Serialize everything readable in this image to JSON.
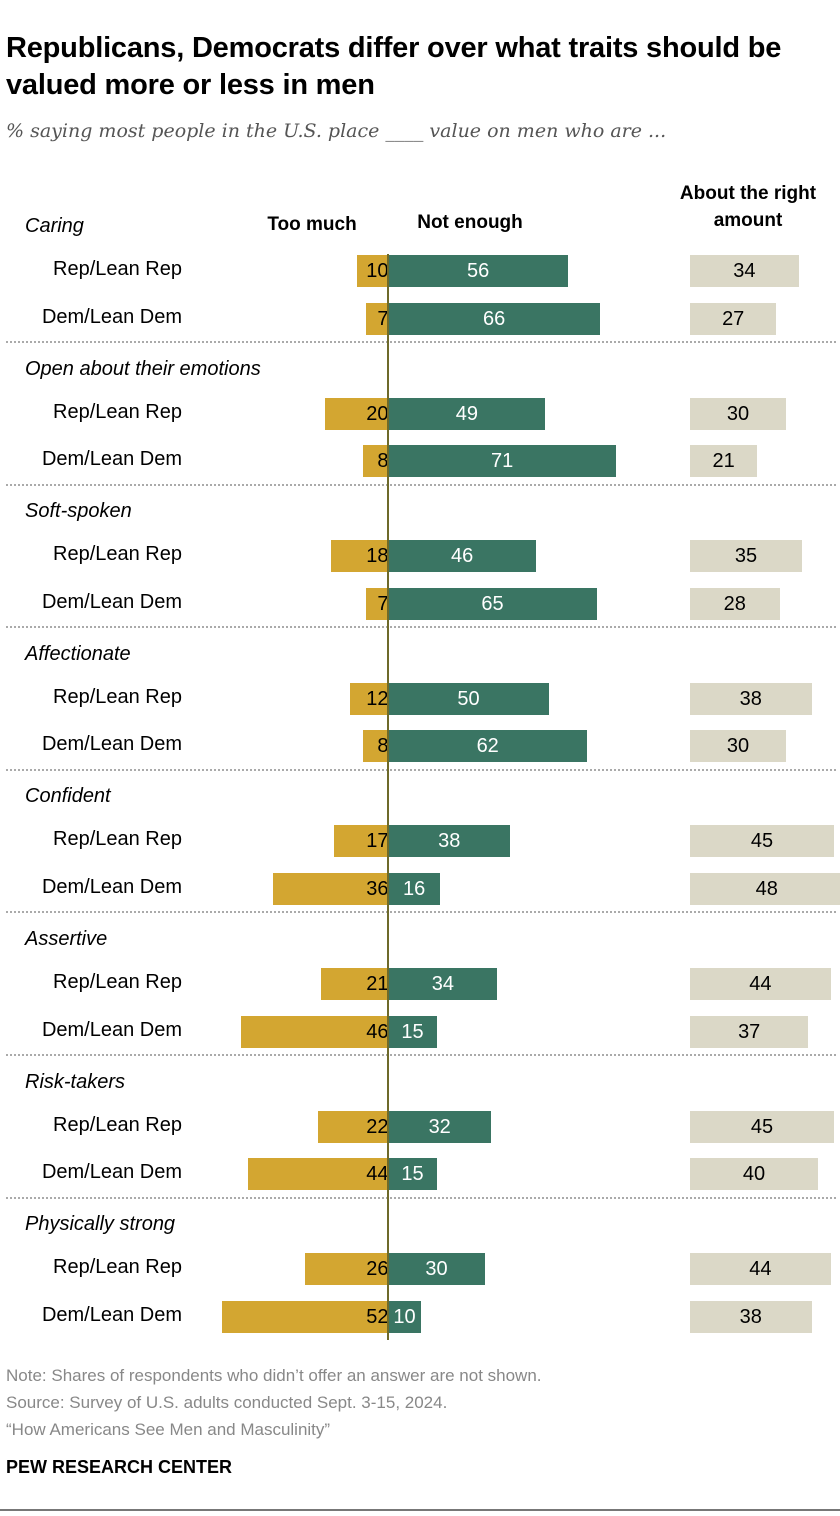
{
  "title": "Republicans, Democrats differ over what traits should be valued more or less in men",
  "subtitle": "% saying most people in the U.S. place ____ value on men who are ...",
  "chart_data": {
    "type": "bar",
    "columns": [
      "Too much",
      "Not enough",
      "About the right amount"
    ],
    "groups": [
      "Rep/Lean Rep",
      "Dem/Lean Dem"
    ],
    "colors": {
      "too_much": "#D3A631",
      "not_enough": "#3A7563",
      "right_amount": "#DBD8C7"
    },
    "categories": [
      {
        "name": "Caring",
        "rows": [
          [
            10,
            56,
            34
          ],
          [
            7,
            66,
            27
          ]
        ]
      },
      {
        "name": "Open about their emotions",
        "rows": [
          [
            20,
            49,
            30
          ],
          [
            8,
            71,
            21
          ]
        ]
      },
      {
        "name": "Soft-spoken",
        "rows": [
          [
            18,
            46,
            35
          ],
          [
            7,
            65,
            28
          ]
        ]
      },
      {
        "name": "Affectionate",
        "rows": [
          [
            12,
            50,
            38
          ],
          [
            8,
            62,
            30
          ]
        ]
      },
      {
        "name": "Confident",
        "rows": [
          [
            17,
            38,
            45
          ],
          [
            36,
            16,
            48
          ]
        ]
      },
      {
        "name": "Assertive",
        "rows": [
          [
            21,
            34,
            44
          ],
          [
            46,
            15,
            37
          ]
        ]
      },
      {
        "name": "Risk-takers",
        "rows": [
          [
            22,
            32,
            45
          ],
          [
            44,
            15,
            40
          ]
        ]
      },
      {
        "name": "Physically strong",
        "rows": [
          [
            26,
            30,
            44
          ],
          [
            52,
            10,
            38
          ]
        ]
      }
    ]
  },
  "notes": {
    "note": "Note: Shares of respondents who didn’t offer an answer are not shown.",
    "source": "Source: Survey of U.S. adults conducted Sept. 3-15, 2024.",
    "report": "“How Americans See Men and Masculinity”"
  },
  "brand": "PEW RESEARCH CENTER"
}
